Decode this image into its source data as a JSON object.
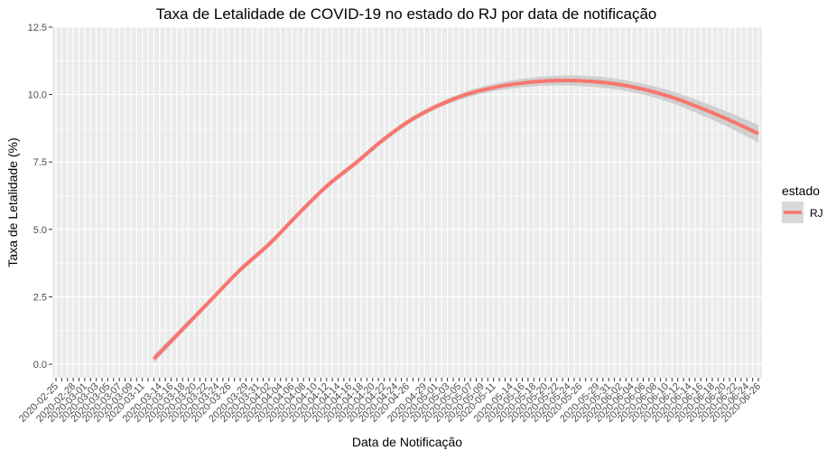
{
  "chart_data": {
    "type": "line",
    "title": "Taxa de Letalidade de COVID-19 no estado do RJ por data de notificação",
    "xlabel": "Data de Notificação",
    "ylabel": "Taxa de Letalidade (%)",
    "ylim": [
      -0.5,
      12.5
    ],
    "yticks": [
      "0.0",
      "2.5",
      "5.0",
      "7.5",
      "10.0",
      "12.5"
    ],
    "grid": true,
    "legend": {
      "title": "estado",
      "entries": [
        "RJ"
      ],
      "position": "right"
    },
    "x_date_range": [
      "2020-02-25",
      "2020-06-26"
    ],
    "x_tick_labels": [
      "2020-02-25",
      "2020-02-28",
      "2020-03-01",
      "2020-03-03",
      "2020-03-05",
      "2020-03-07",
      "2020-03-09",
      "2020-03-11",
      "2020-03-14",
      "2020-03-16",
      "2020-03-18",
      "2020-03-20",
      "2020-03-22",
      "2020-03-24",
      "2020-03-26",
      "2020-03-29",
      "2020-03-31",
      "2020-04-02",
      "2020-04-04",
      "2020-04-06",
      "2020-04-08",
      "2020-04-10",
      "2020-04-12",
      "2020-04-14",
      "2020-04-16",
      "2020-04-18",
      "2020-04-20",
      "2020-04-22",
      "2020-04-24",
      "2020-04-26",
      "2020-04-29",
      "2020-05-01",
      "2020-05-03",
      "2020-05-05",
      "2020-05-07",
      "2020-05-09",
      "2020-05-11",
      "2020-05-14",
      "2020-05-16",
      "2020-05-18",
      "2020-05-20",
      "2020-05-22",
      "2020-05-24",
      "2020-05-26",
      "2020-05-29",
      "2020-05-31",
      "2020-06-02",
      "2020-06-04",
      "2020-06-06",
      "2020-06-08",
      "2020-06-10",
      "2020-06-12",
      "2020-06-14",
      "2020-06-16",
      "2020-06-18",
      "2020-06-20",
      "2020-06-22",
      "2020-06-24",
      "2020-06-26"
    ],
    "series": [
      {
        "name": "RJ",
        "color": "#F8766D",
        "band_color": "#cccccc",
        "x": [
          "2020-03-13",
          "2020-03-18",
          "2020-03-23",
          "2020-03-28",
          "2020-04-02",
          "2020-04-07",
          "2020-04-12",
          "2020-04-17",
          "2020-04-22",
          "2020-04-27",
          "2020-05-02",
          "2020-05-07",
          "2020-05-12",
          "2020-05-17",
          "2020-05-22",
          "2020-05-27",
          "2020-06-01",
          "2020-06-06",
          "2020-06-11",
          "2020-06-16",
          "2020-06-21",
          "2020-06-26"
        ],
        "y": [
          0.2,
          1.3,
          2.4,
          3.5,
          4.45,
          5.55,
          6.6,
          7.45,
          8.35,
          9.1,
          9.65,
          10.05,
          10.3,
          10.45,
          10.52,
          10.5,
          10.4,
          10.2,
          9.9,
          9.5,
          9.05,
          8.55
        ],
        "ci_halfwidth": [
          0.15,
          0.12,
          0.1,
          0.1,
          0.1,
          0.1,
          0.1,
          0.1,
          0.1,
          0.1,
          0.1,
          0.12,
          0.14,
          0.16,
          0.18,
          0.2,
          0.2,
          0.2,
          0.22,
          0.25,
          0.28,
          0.32
        ]
      }
    ]
  }
}
